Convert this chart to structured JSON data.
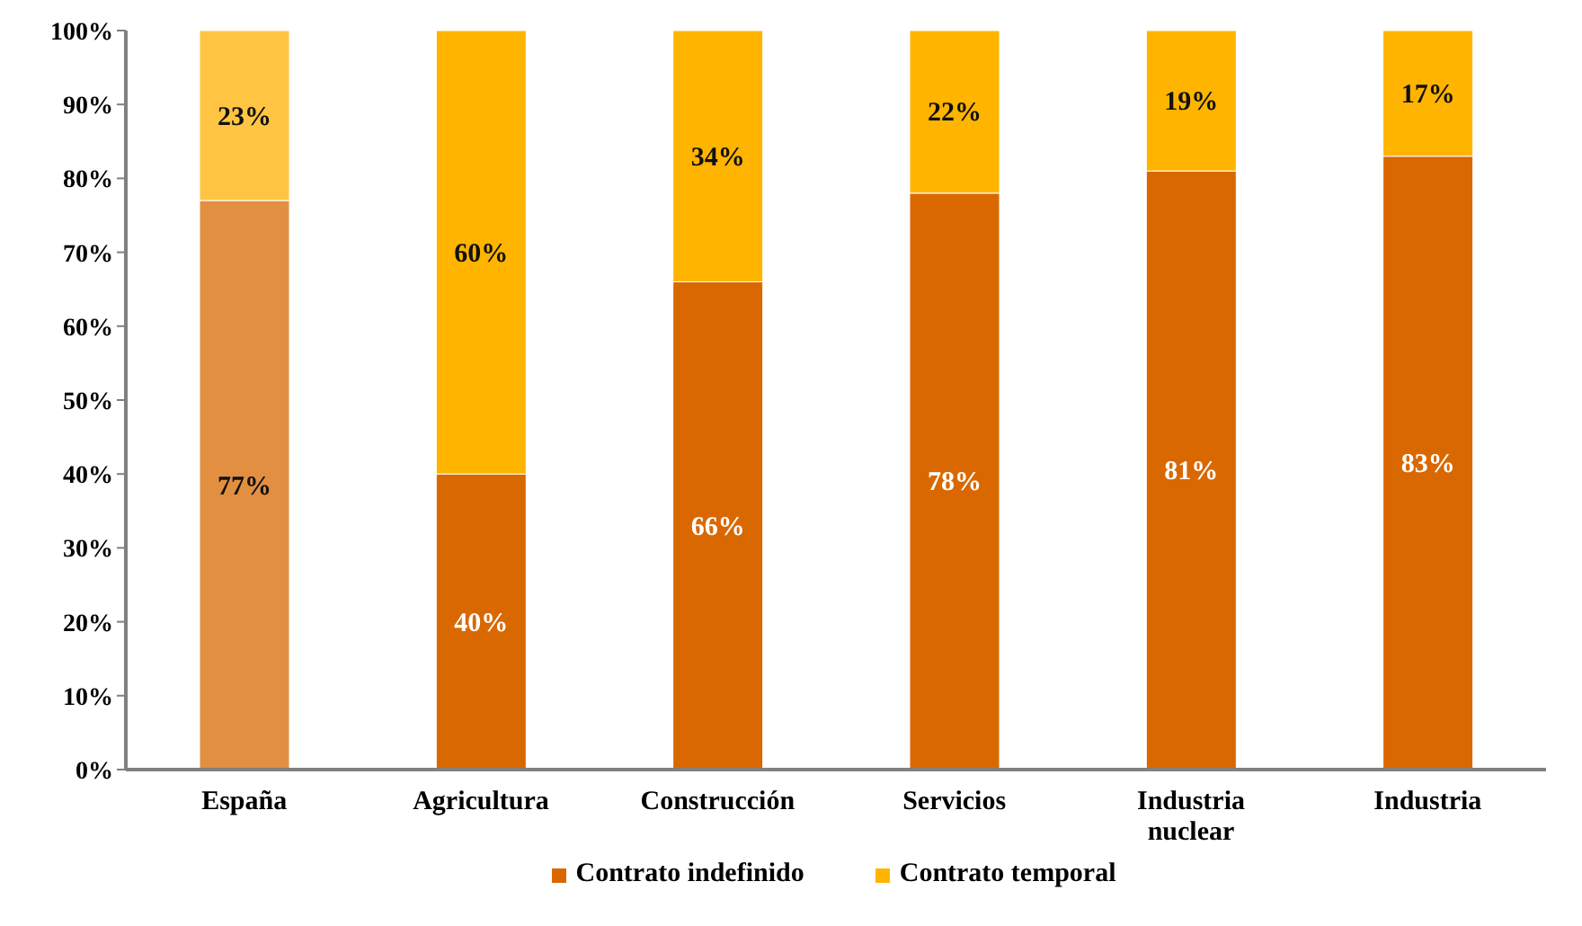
{
  "chart_data": {
    "type": "bar",
    "stacked": true,
    "categories": [
      "España",
      "Agricultura",
      "Construcción",
      "Servicios",
      "Industria nuclear",
      "Industria"
    ],
    "series": [
      {
        "name": "Contrato indefinido",
        "color": "#d96800",
        "colors": [
          "#e38f42",
          "#d96800",
          "#d96800",
          "#d96800",
          "#d96800",
          "#d96800"
        ],
        "values": [
          77,
          40,
          66,
          78,
          81,
          83
        ],
        "value_labels": [
          "77%",
          "40%",
          "66%",
          "78%",
          "81%",
          "83%"
        ]
      },
      {
        "name": "Contrato temporal",
        "color": "#ffb400",
        "colors": [
          "#ffc542",
          "#ffb400",
          "#ffb400",
          "#ffb400",
          "#ffb400",
          "#ffb400"
        ],
        "values": [
          23,
          60,
          34,
          22,
          19,
          17
        ],
        "value_labels": [
          "23%",
          "60%",
          "34%",
          "22%",
          "19%",
          "17%"
        ]
      }
    ],
    "ylim": [
      0,
      100
    ],
    "yticks": [
      {
        "value": 0,
        "label": "0%"
      },
      {
        "value": 10,
        "label": "10%"
      },
      {
        "value": 20,
        "label": "20%"
      },
      {
        "value": 30,
        "label": "30%"
      },
      {
        "value": 40,
        "label": "40%"
      },
      {
        "value": 50,
        "label": "50%"
      },
      {
        "value": 60,
        "label": "60%"
      },
      {
        "value": 70,
        "label": "70%"
      },
      {
        "value": 80,
        "label": "80%"
      },
      {
        "value": 90,
        "label": "90%"
      },
      {
        "value": 100,
        "label": "100%"
      }
    ],
    "grid": false,
    "legend": "bottom"
  }
}
